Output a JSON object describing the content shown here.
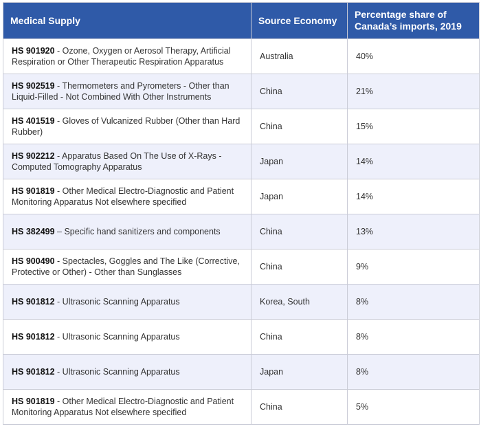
{
  "table": {
    "header": [
      "Medical Supply",
      "Source Economy",
      "Percentage share of Canada’s imports, 2019"
    ],
    "rows": [
      {
        "code": "HS 901920",
        "description": "- Ozone, Oxygen or Aerosol Therapy, Artificial Respiration or Other Therapeutic Respiration Apparatus",
        "economy": "Australia",
        "share": "40%"
      },
      {
        "code": "HS 902519",
        "description": "- Thermometers and Pyrometers - Other than Liquid-Filled - Not Combined With Other Instruments",
        "economy": "China",
        "share": "21%"
      },
      {
        "code": "HS 401519",
        "description": "- Gloves of Vulcanized Rubber (Other than Hard Rubber)",
        "economy": "China",
        "share": "15%"
      },
      {
        "code": "HS 902212",
        "description": "- Apparatus Based On The Use of X-Rays - Computed Tomography Apparatus",
        "economy": "Japan",
        "share": "14%"
      },
      {
        "code": "HS 901819",
        "description": "- Other Medical Electro-Diagnostic and Patient Monitoring Apparatus Not elsewhere specified",
        "economy": "Japan",
        "share": "14%"
      },
      {
        "code": "HS 382499",
        "description": "– Specific hand sanitizers and components",
        "economy": "China",
        "share": "13%"
      },
      {
        "code": "HS 900490",
        "description": "- Spectacles, Goggles and The Like (Corrective, Protective or Other) - Other than Sunglasses",
        "economy": "China",
        "share": "9%"
      },
      {
        "code": "HS 901812",
        "description": "- Ultrasonic Scanning Apparatus",
        "economy": "Korea, South",
        "share": "8%"
      },
      {
        "code": "HS 901812",
        "description": "- Ultrasonic Scanning Apparatus",
        "economy": "China",
        "share": "8%"
      },
      {
        "code": "HS 901812",
        "description": "- Ultrasonic Scanning Apparatus",
        "economy": "Japan",
        "share": "8%"
      },
      {
        "code": "HS 901819",
        "description": "- Other Medical Electro-Diagnostic and Patient Monitoring Apparatus Not elsewhere specified",
        "economy": "China",
        "share": "5%"
      }
    ]
  }
}
